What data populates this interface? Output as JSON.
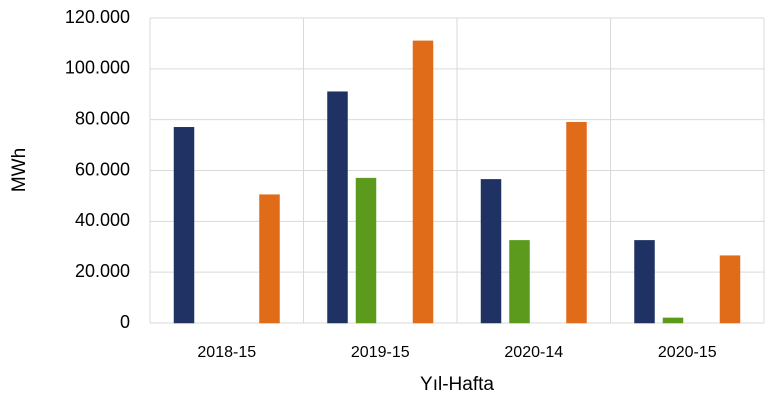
{
  "chart_data": {
    "type": "bar",
    "x_label": "Yıl-Hafta",
    "y_label": "MWh",
    "categories": [
      "2018-15",
      "2019-15",
      "2020-14",
      "2020-15"
    ],
    "series": [
      {
        "color": "#1f3263",
        "values": [
          77000,
          91000,
          56500,
          32500
        ]
      },
      {
        "color": "#5b9a1c",
        "values": [
          0,
          57000,
          32500,
          2000
        ]
      },
      {
        "color": "#e06c1a",
        "values": [
          50500,
          111000,
          79000,
          26500
        ]
      }
    ],
    "ylim": [
      0,
      120000
    ],
    "yticks": [
      0,
      {
        "value": 20000,
        "label": "20.000"
      },
      {
        "value": 40000,
        "label": "40.000"
      },
      {
        "value": 60000,
        "label": "60.000"
      },
      {
        "value": 80000,
        "label": "80.000"
      },
      {
        "value": 100000,
        "label": "100.000"
      },
      {
        "value": 120000,
        "label": "120.000"
      }
    ],
    "grid": true
  }
}
